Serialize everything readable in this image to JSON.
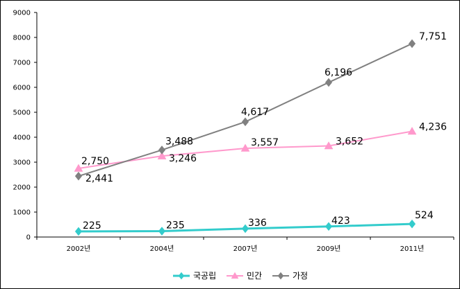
{
  "chart_data": {
    "type": "line",
    "categories": [
      "2002년",
      "2004년",
      "2007년",
      "2009년",
      "2011년"
    ],
    "ylim": [
      0,
      9000
    ],
    "yticks": [
      0,
      1000,
      2000,
      3000,
      4000,
      5000,
      6000,
      7000,
      8000,
      9000
    ],
    "grid": false,
    "legend_position": "bottom",
    "series": [
      {
        "name": "국공립",
        "values": [
          225,
          235,
          336,
          423,
          524
        ],
        "labels": [
          "225",
          "235",
          "336",
          "423",
          "524"
        ],
        "color": "#33cccc",
        "marker": "diamond"
      },
      {
        "name": "민간",
        "values": [
          2750,
          3246,
          3557,
          3652,
          4236
        ],
        "labels": [
          "2,750",
          "3,246",
          "3,557",
          "3,652",
          "4,236"
        ],
        "color": "#ff99cc",
        "marker": "triangle"
      },
      {
        "name": "가정",
        "values": [
          2441,
          3488,
          4617,
          6196,
          7751
        ],
        "labels": [
          "2,441",
          "3,488",
          "4,617",
          "6,196",
          "7,751"
        ],
        "color": "#808080",
        "marker": "diamond"
      }
    ]
  }
}
